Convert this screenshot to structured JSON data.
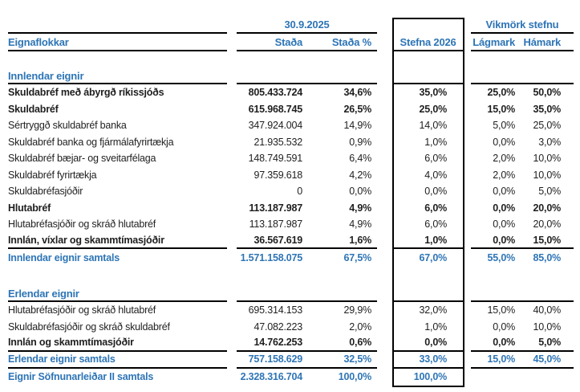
{
  "header": {
    "date": "30.9.2025",
    "vikmork_group": "Vikmörk stefnu",
    "col_label": "Eignaflokkar",
    "col_stada": "Staða",
    "col_stada_pct": "Staða %",
    "col_stefna": "Stefna 2026",
    "col_lagmark": "Lágmark",
    "col_hamark": "Hámark"
  },
  "innlendar": {
    "title": "Innlendar eignir",
    "rows": [
      {
        "label": "Skuldabréf með ábyrgð ríkissjóðs",
        "stada": "805.433.724",
        "pct": "34,6%",
        "stefna": "35,0%",
        "lagmark": "25,0%",
        "hamark": "50,0%"
      },
      {
        "label": "Skuldabréf",
        "stada": "615.968.745",
        "pct": "26,5%",
        "stefna": "25,0%",
        "lagmark": "15,0%",
        "hamark": "35,0%"
      },
      {
        "label": "Sértryggð skuldabréf banka",
        "stada": "347.924.004",
        "pct": "14,9%",
        "stefna": "14,0%",
        "lagmark": "5,0%",
        "hamark": "25,0%"
      },
      {
        "label": "Skuldabréf banka og fjármálafyrirtækja",
        "stada": "21.935.532",
        "pct": "0,9%",
        "stefna": "1,0%",
        "lagmark": "0,0%",
        "hamark": "3,0%"
      },
      {
        "label": "Skuldabréf bæjar- og sveitarfélaga",
        "stada": "148.749.591",
        "pct": "6,4%",
        "stefna": "6,0%",
        "lagmark": "2,0%",
        "hamark": "10,0%"
      },
      {
        "label": "Skuldabréf fyrirtækja",
        "stada": "97.359.618",
        "pct": "4,2%",
        "stefna": "4,0%",
        "lagmark": "2,0%",
        "hamark": "10,0%"
      },
      {
        "label": "Skuldabréfasjóðir",
        "stada": "0",
        "pct": "0,0%",
        "stefna": "0,0%",
        "lagmark": "0,0%",
        "hamark": "5,0%"
      },
      {
        "label": "Hlutabréf",
        "stada": "113.187.987",
        "pct": "4,9%",
        "stefna": "6,0%",
        "lagmark": "0,0%",
        "hamark": "20,0%"
      },
      {
        "label": "Hlutabréfasjóðir og skráð hlutabréf",
        "stada": "113.187.987",
        "pct": "4,9%",
        "stefna": "6,0%",
        "lagmark": "0,0%",
        "hamark": "20,0%"
      },
      {
        "label": "Innlán, víxlar og skammtímasjóðir",
        "stada": "36.567.619",
        "pct": "1,6%",
        "stefna": "1,0%",
        "lagmark": "0,0%",
        "hamark": "15,0%"
      }
    ],
    "total": {
      "label": "Innlendar eignir samtals",
      "stada": "1.571.158.075",
      "pct": "67,5%",
      "stefna": "67,0%",
      "lagmark": "55,0%",
      "hamark": "85,0%"
    }
  },
  "erlendar": {
    "title": "Erlendar eignir",
    "rows": [
      {
        "label": "Hlutabréfasjóðir og skráð hlutabréf",
        "stada": "695.314.153",
        "pct": "29,9%",
        "stefna": "32,0%",
        "lagmark": "15,0%",
        "hamark": "40,0%"
      },
      {
        "label": "Skuldabréfasjóðir og skráð skuldabréf",
        "stada": "47.082.223",
        "pct": "2,0%",
        "stefna": "1,0%",
        "lagmark": "0,0%",
        "hamark": "10,0%"
      },
      {
        "label": "Innlán og skammtímasjóðir",
        "stada": "14.762.253",
        "pct": "0,6%",
        "stefna": "0,0%",
        "lagmark": "0,0%",
        "hamark": "5,0%"
      }
    ],
    "total": {
      "label": "Erlendar eignir samtals",
      "stada": "757.158.629",
      "pct": "32,5%",
      "stefna": "33,0%",
      "lagmark": "15,0%",
      "hamark": "45,0%"
    }
  },
  "grand_total": {
    "label": "Eignir Söfnunarleiðar II samtals",
    "stada": "2.328.316.704",
    "pct": "100,0%",
    "stefna": "100,0%"
  },
  "colors": {
    "accent_blue": "#2e75b6",
    "text_black": "#1f1f1f",
    "line_black": "#000000"
  }
}
